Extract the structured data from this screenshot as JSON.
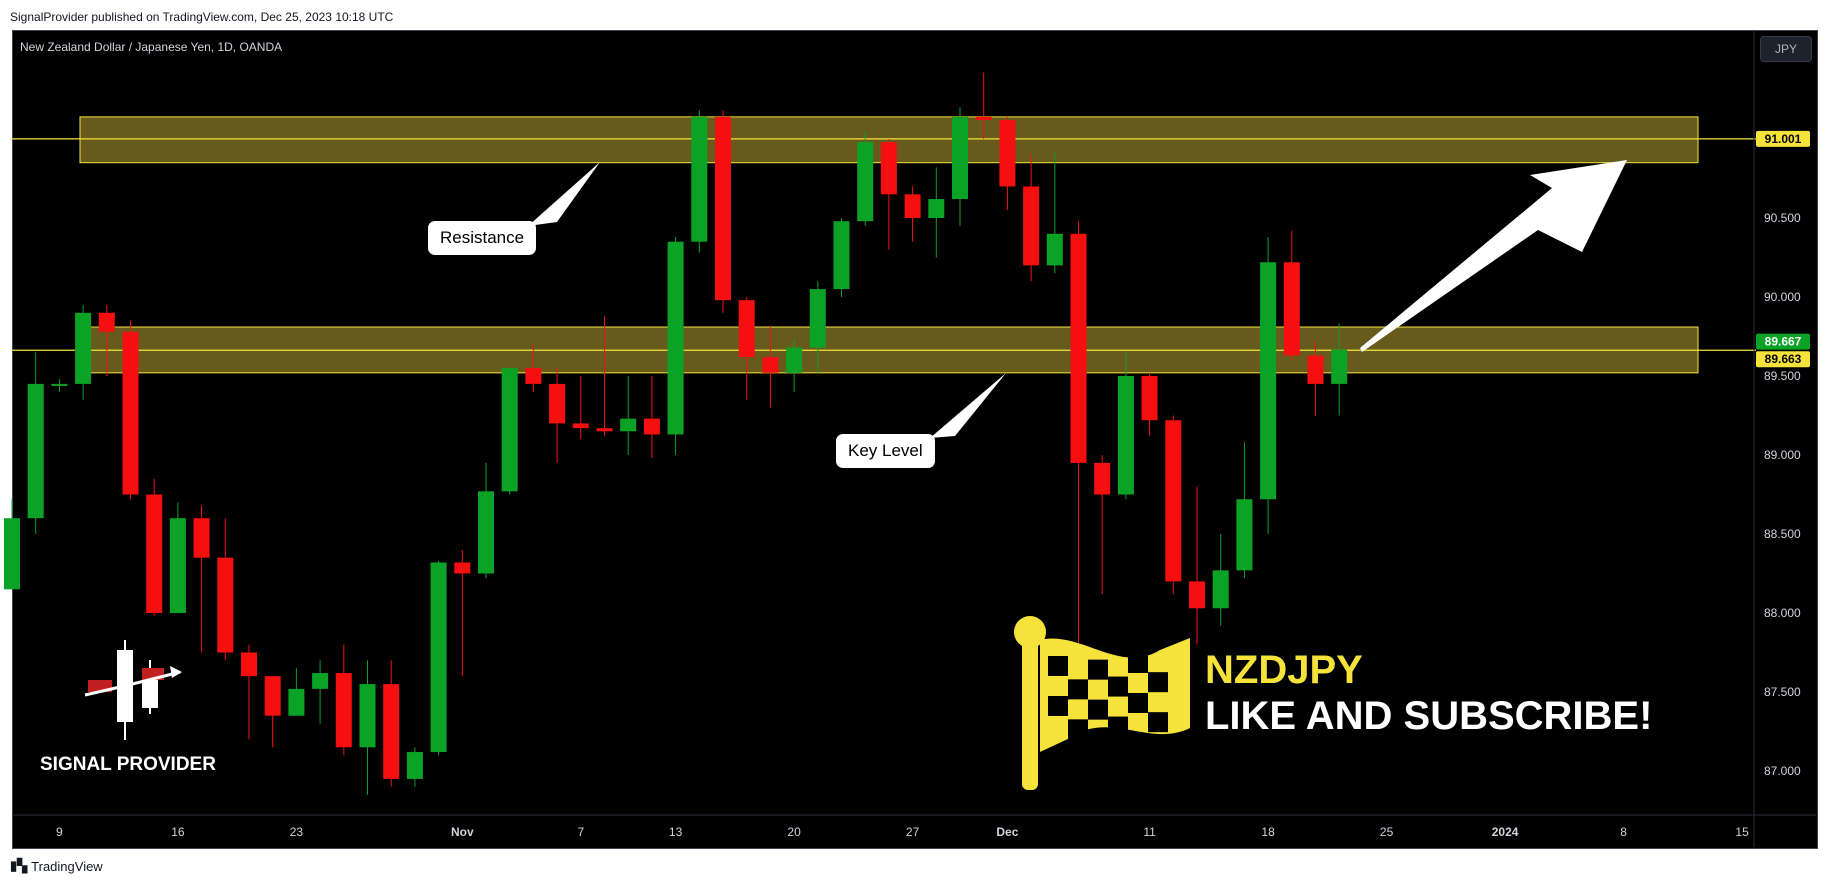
{
  "header": {
    "published_caption": "SignalProvider published on TradingView.com, Dec 25, 2023 10:18 UTC"
  },
  "chart_header": {
    "symbol_title": "New Zealand Dollar / Japanese Yen, 1D, OANDA",
    "currency_button": "JPY"
  },
  "footer": {
    "brand": "TradingView"
  },
  "annotations": {
    "resistance_label": "Resistance",
    "key_level_label": "Key Level"
  },
  "branding": {
    "ticker": "NZDJPY",
    "cta": "LIKE AND SUBSCRIBE!",
    "logo_text": "SIGNAL PROVIDER"
  },
  "colors": {
    "up": "#0aa325",
    "down": "#f50f0f",
    "zone_fill": "#b9a535",
    "zone_line": "#f5e33b",
    "axis_text": "#d1d4dc"
  },
  "chart_data": {
    "type": "candlestick",
    "title": "New Zealand Dollar / Japanese Yen, 1D, OANDA",
    "ylim": [
      86.65,
      91.6
    ],
    "y_ticks": [
      "91.000",
      "90.500",
      "90.000",
      "89.500",
      "89.000",
      "88.500",
      "88.000",
      "87.500",
      "87.000"
    ],
    "y_tick_values": [
      91.0,
      90.5,
      90.0,
      89.5,
      89.0,
      88.5,
      88.0,
      87.5,
      87.0
    ],
    "x_ticks": [
      {
        "label": "9",
        "index": 2
      },
      {
        "label": "16",
        "index": 7
      },
      {
        "label": "23",
        "index": 12
      },
      {
        "label": "Nov",
        "index": 19
      },
      {
        "label": "7",
        "index": 24
      },
      {
        "label": "13",
        "index": 28
      },
      {
        "label": "20",
        "index": 33
      },
      {
        "label": "27",
        "index": 38
      },
      {
        "label": "Dec",
        "index": 42
      },
      {
        "label": "11",
        "index": 48
      },
      {
        "label": "18",
        "index": 53
      },
      {
        "label": "25",
        "index": 58
      },
      {
        "label": "2024",
        "index": 63
      },
      {
        "label": "8",
        "index": 68
      },
      {
        "label": "15",
        "index": 73
      }
    ],
    "price_labels": [
      {
        "text": "91.001",
        "value": 91.001,
        "kind": "line"
      },
      {
        "text": "89.667",
        "value": 89.667,
        "kind": "last"
      },
      {
        "text": "89.663",
        "value": 89.663,
        "kind": "line"
      }
    ],
    "zones": [
      {
        "name": "Resistance",
        "low": 90.85,
        "high": 91.14,
        "level": 91.001
      },
      {
        "name": "Key Level",
        "low": 89.52,
        "high": 89.81,
        "level": 89.663
      }
    ],
    "candles": [
      {
        "o": 88.15,
        "h": 88.72,
        "l": 88.15,
        "c": 88.6
      },
      {
        "o": 88.6,
        "h": 89.65,
        "l": 88.5,
        "c": 89.45
      },
      {
        "o": 89.45,
        "h": 89.48,
        "l": 89.4,
        "c": 89.45
      },
      {
        "o": 89.45,
        "h": 89.95,
        "l": 89.35,
        "c": 89.9
      },
      {
        "o": 89.9,
        "h": 89.95,
        "l": 89.5,
        "c": 89.78
      },
      {
        "o": 89.78,
        "h": 89.85,
        "l": 88.72,
        "c": 88.75
      },
      {
        "o": 88.75,
        "h": 88.85,
        "l": 87.98,
        "c": 88.0
      },
      {
        "o": 88.0,
        "h": 88.7,
        "l": 88.0,
        "c": 88.6
      },
      {
        "o": 88.6,
        "h": 88.68,
        "l": 87.75,
        "c": 88.35
      },
      {
        "o": 88.35,
        "h": 88.6,
        "l": 87.7,
        "c": 87.75
      },
      {
        "o": 87.75,
        "h": 87.8,
        "l": 87.2,
        "c": 87.6
      },
      {
        "o": 87.6,
        "h": 87.6,
        "l": 87.15,
        "c": 87.35
      },
      {
        "o": 87.35,
        "h": 87.65,
        "l": 87.35,
        "c": 87.52
      },
      {
        "o": 87.52,
        "h": 87.7,
        "l": 87.3,
        "c": 87.62
      },
      {
        "o": 87.62,
        "h": 87.8,
        "l": 87.1,
        "c": 87.15
      },
      {
        "o": 87.15,
        "h": 87.7,
        "l": 86.85,
        "c": 87.55
      },
      {
        "o": 87.55,
        "h": 87.7,
        "l": 86.9,
        "c": 86.95
      },
      {
        "o": 86.95,
        "h": 87.15,
        "l": 86.9,
        "c": 87.12
      },
      {
        "o": 87.12,
        "h": 88.33,
        "l": 87.1,
        "c": 88.32
      },
      {
        "o": 88.32,
        "h": 88.4,
        "l": 87.6,
        "c": 88.25
      },
      {
        "o": 88.25,
        "h": 88.95,
        "l": 88.22,
        "c": 88.77
      },
      {
        "o": 88.77,
        "h": 89.55,
        "l": 88.75,
        "c": 89.55
      },
      {
        "o": 89.55,
        "h": 89.7,
        "l": 89.4,
        "c": 89.45
      },
      {
        "o": 89.45,
        "h": 89.55,
        "l": 88.95,
        "c": 89.2
      },
      {
        "o": 89.2,
        "h": 89.5,
        "l": 89.1,
        "c": 89.17
      },
      {
        "o": 89.17,
        "h": 89.88,
        "l": 89.12,
        "c": 89.15
      },
      {
        "o": 89.15,
        "h": 89.5,
        "l": 89.0,
        "c": 89.23
      },
      {
        "o": 89.23,
        "h": 89.5,
        "l": 88.98,
        "c": 89.13
      },
      {
        "o": 89.13,
        "h": 90.38,
        "l": 89.0,
        "c": 90.35
      },
      {
        "o": 90.35,
        "h": 91.18,
        "l": 90.28,
        "c": 91.14
      },
      {
        "o": 91.14,
        "h": 91.18,
        "l": 89.9,
        "c": 89.98
      },
      {
        "o": 89.98,
        "h": 90.0,
        "l": 89.35,
        "c": 89.62
      },
      {
        "o": 89.62,
        "h": 89.82,
        "l": 89.3,
        "c": 89.52
      },
      {
        "o": 89.52,
        "h": 89.73,
        "l": 89.4,
        "c": 89.68
      },
      {
        "o": 89.68,
        "h": 90.1,
        "l": 89.52,
        "c": 90.05
      },
      {
        "o": 90.05,
        "h": 90.5,
        "l": 90.0,
        "c": 90.48
      },
      {
        "o": 90.48,
        "h": 91.05,
        "l": 90.45,
        "c": 90.98
      },
      {
        "o": 90.98,
        "h": 91.0,
        "l": 90.3,
        "c": 90.65
      },
      {
        "o": 90.65,
        "h": 90.7,
        "l": 90.35,
        "c": 90.5
      },
      {
        "o": 90.5,
        "h": 90.82,
        "l": 90.25,
        "c": 90.62
      },
      {
        "o": 90.62,
        "h": 91.2,
        "l": 90.45,
        "c": 91.14
      },
      {
        "o": 91.14,
        "h": 91.42,
        "l": 91.0,
        "c": 91.12
      },
      {
        "o": 91.12,
        "h": 91.14,
        "l": 90.55,
        "c": 90.7
      },
      {
        "o": 90.7,
        "h": 90.9,
        "l": 90.1,
        "c": 90.2
      },
      {
        "o": 90.2,
        "h": 90.92,
        "l": 90.15,
        "c": 90.4
      },
      {
        "o": 90.4,
        "h": 90.48,
        "l": 87.68,
        "c": 88.95
      },
      {
        "o": 88.95,
        "h": 89.0,
        "l": 88.12,
        "c": 88.75
      },
      {
        "o": 88.75,
        "h": 89.65,
        "l": 88.72,
        "c": 89.5
      },
      {
        "o": 89.5,
        "h": 89.52,
        "l": 89.12,
        "c": 89.22
      },
      {
        "o": 89.22,
        "h": 89.25,
        "l": 88.12,
        "c": 88.2
      },
      {
        "o": 88.2,
        "h": 88.8,
        "l": 87.8,
        "c": 88.03
      },
      {
        "o": 88.03,
        "h": 88.5,
        "l": 87.92,
        "c": 88.27
      },
      {
        "o": 88.27,
        "h": 89.08,
        "l": 88.22,
        "c": 88.72
      },
      {
        "o": 88.72,
        "h": 90.38,
        "l": 88.5,
        "c": 90.22
      },
      {
        "o": 90.22,
        "h": 90.42,
        "l": 89.6,
        "c": 89.63
      },
      {
        "o": 89.63,
        "h": 89.72,
        "l": 89.25,
        "c": 89.45
      },
      {
        "o": 89.45,
        "h": 89.83,
        "l": 89.25,
        "c": 89.667
      }
    ]
  }
}
